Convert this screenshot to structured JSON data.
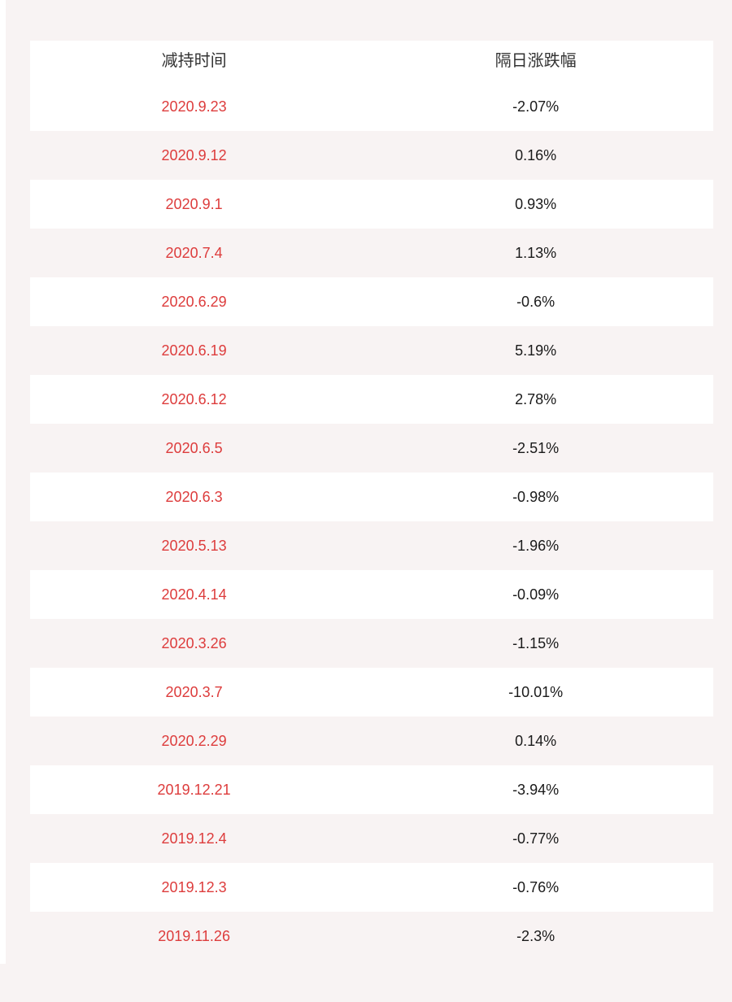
{
  "colors": {
    "page_background": "#f8f3f3",
    "row_stripe_white": "#ffffff",
    "date_red": "#dd3c3c",
    "value_black": "#1a1a1a",
    "header_text": "#333333"
  },
  "chart_data": {
    "type": "table",
    "columns": [
      "减持时间",
      "隔日涨跌幅"
    ],
    "rows": [
      {
        "date": "2020.9.23",
        "change": "-2.07%"
      },
      {
        "date": "2020.9.12",
        "change": "0.16%"
      },
      {
        "date": "2020.9.1",
        "change": "0.93%"
      },
      {
        "date": "2020.7.4",
        "change": "1.13%"
      },
      {
        "date": "2020.6.29",
        "change": "-0.6%"
      },
      {
        "date": "2020.6.19",
        "change": "5.19%"
      },
      {
        "date": "2020.6.12",
        "change": "2.78%"
      },
      {
        "date": "2020.6.5",
        "change": "-2.51%"
      },
      {
        "date": "2020.6.3",
        "change": "-0.98%"
      },
      {
        "date": "2020.5.13",
        "change": "-1.96%"
      },
      {
        "date": "2020.4.14",
        "change": "-0.09%"
      },
      {
        "date": "2020.3.26",
        "change": "-1.15%"
      },
      {
        "date": "2020.3.7",
        "change": "-10.01%"
      },
      {
        "date": "2020.2.29",
        "change": "0.14%"
      },
      {
        "date": "2019.12.21",
        "change": "-3.94%"
      },
      {
        "date": "2019.12.4",
        "change": "-0.77%"
      },
      {
        "date": "2019.12.3",
        "change": "-0.76%"
      },
      {
        "date": "2019.11.26",
        "change": "-2.3%"
      }
    ],
    "change_values_numeric": [
      -2.07,
      0.16,
      0.93,
      1.13,
      -0.6,
      5.19,
      2.78,
      -2.51,
      -0.98,
      -1.96,
      -0.09,
      -1.15,
      -10.01,
      0.14,
      -3.94,
      -0.77,
      -0.76,
      -2.3
    ],
    "layout": {
      "striped": true,
      "date_column_align": "center",
      "change_column_align": "center"
    }
  }
}
